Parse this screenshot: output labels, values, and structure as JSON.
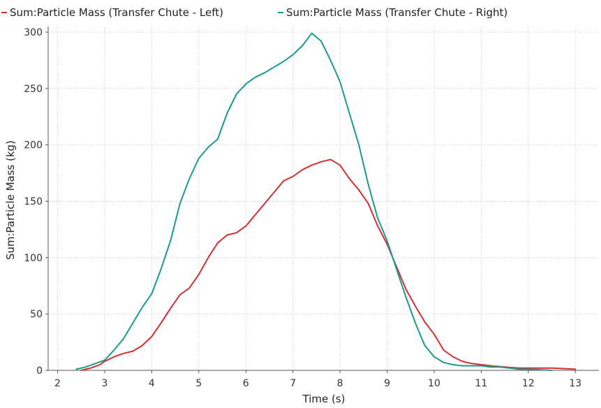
{
  "chart_data": {
    "type": "line",
    "title": "",
    "xlabel": "Time (s)",
    "ylabel": "Sum:Particle Mass (kg)",
    "xlim": [
      1.8,
      13.5
    ],
    "ylim": [
      0,
      305
    ],
    "xticks": [
      2,
      3,
      4,
      5,
      6,
      7,
      8,
      9,
      10,
      11,
      12,
      13
    ],
    "yticks": [
      0,
      50,
      100,
      150,
      200,
      250,
      300
    ],
    "grid": true,
    "legend_position": "top",
    "series": [
      {
        "name": "Sum:Particle Mass (Transfer Chute - Left)",
        "color": "#d32f2f",
        "x": [
          2.5,
          2.7,
          2.9,
          3.0,
          3.2,
          3.4,
          3.6,
          3.8,
          4.0,
          4.2,
          4.4,
          4.6,
          4.8,
          5.0,
          5.2,
          5.4,
          5.6,
          5.8,
          6.0,
          6.2,
          6.4,
          6.6,
          6.8,
          7.0,
          7.2,
          7.4,
          7.6,
          7.8,
          8.0,
          8.2,
          8.4,
          8.6,
          8.8,
          9.0,
          9.2,
          9.4,
          9.6,
          9.8,
          10.0,
          10.2,
          10.4,
          10.6,
          10.8,
          11.0,
          11.2,
          11.5,
          11.8,
          12.0,
          12.5,
          13.0
        ],
        "values": [
          0,
          2,
          5,
          8,
          12,
          15,
          17,
          22,
          30,
          42,
          55,
          67,
          73,
          85,
          100,
          113,
          120,
          122,
          128,
          138,
          148,
          158,
          168,
          172,
          178,
          182,
          185,
          187,
          182,
          170,
          160,
          148,
          128,
          112,
          92,
          72,
          57,
          43,
          32,
          18,
          12,
          8,
          6,
          5,
          4,
          3,
          2,
          2,
          2,
          1
        ]
      },
      {
        "name": "Sum:Particle Mass (Transfer Chute - Right)",
        "color": "#1a9a8a",
        "x": [
          2.4,
          2.6,
          2.8,
          3.0,
          3.2,
          3.4,
          3.6,
          3.8,
          4.0,
          4.2,
          4.4,
          4.6,
          4.8,
          5.0,
          5.2,
          5.4,
          5.6,
          5.8,
          6.0,
          6.2,
          6.4,
          6.6,
          6.8,
          7.0,
          7.2,
          7.4,
          7.6,
          7.8,
          8.0,
          8.2,
          8.4,
          8.6,
          8.8,
          9.0,
          9.2,
          9.4,
          9.6,
          9.8,
          10.0,
          10.2,
          10.4,
          10.6,
          10.8,
          11.0,
          11.2,
          11.4,
          11.6,
          11.8,
          12.0,
          12.5
        ],
        "values": [
          1,
          3,
          6,
          9,
          18,
          28,
          42,
          56,
          68,
          90,
          115,
          148,
          170,
          188,
          198,
          205,
          228,
          245,
          254,
          260,
          264,
          269,
          274,
          280,
          288,
          299,
          292,
          275,
          256,
          228,
          200,
          165,
          135,
          115,
          90,
          65,
          42,
          22,
          12,
          7,
          5,
          4,
          4,
          4,
          3,
          3,
          2,
          1,
          1,
          0
        ]
      }
    ]
  }
}
